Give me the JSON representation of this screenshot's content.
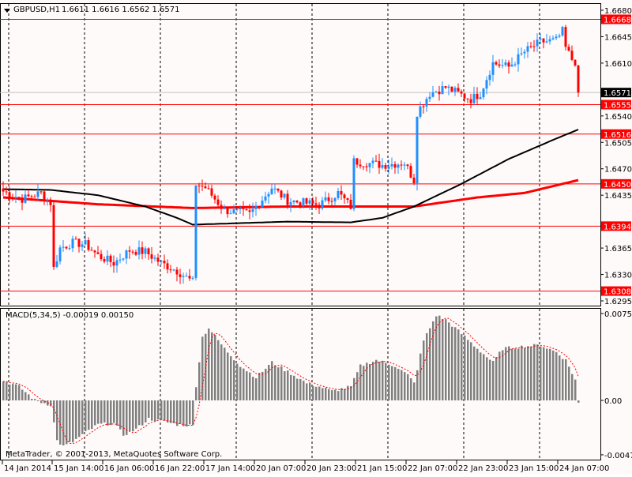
{
  "header": {
    "symbol": "GBPUSD,H1",
    "ohlc": "1.6611 1.6616 1.6562 1.6571"
  },
  "indicator": {
    "label": "MACD(5,34,5) -0.00019 0.00150"
  },
  "copyright": "MetaTrader, © 2001-2013, MetaQuotes Software Corp.",
  "colors": {
    "bull": "#1e90ff",
    "bear": "#ff0000",
    "background": "#fffafa",
    "ma_slow": "#ff0000",
    "ma_fast": "#000000",
    "histogram": "#808080",
    "signal": "#ff0000"
  },
  "chart_data": {
    "type": "candlestick",
    "title": "GBPUSD,H1",
    "bars": 183,
    "ylim": [
      1.6295,
      1.668
    ],
    "price_ticks": [
      "1.6680",
      "1.6645",
      "1.6610",
      "1.6540",
      "1.6505",
      "1.6470",
      "1.6435",
      "1.6365",
      "1.6330",
      "1.6295"
    ],
    "current_price": "1.6571",
    "levels": [
      "1.6668",
      "1.6555",
      "1.6516",
      "1.6450",
      "1.6394",
      "1.6308"
    ],
    "close_keypoints": [
      [
        0,
        1.644
      ],
      [
        6,
        1.643
      ],
      [
        12,
        1.6438
      ],
      [
        15,
        1.6425
      ],
      [
        16,
        1.6338
      ],
      [
        18,
        1.6365
      ],
      [
        22,
        1.6372
      ],
      [
        26,
        1.637
      ],
      [
        30,
        1.6355
      ],
      [
        35,
        1.6345
      ],
      [
        40,
        1.6362
      ],
      [
        45,
        1.636
      ],
      [
        50,
        1.6345
      ],
      [
        55,
        1.6335
      ],
      [
        60,
        1.632
      ],
      [
        61,
        1.645
      ],
      [
        64,
        1.6445
      ],
      [
        67,
        1.643
      ],
      [
        70,
        1.6415
      ],
      [
        78,
        1.641
      ],
      [
        85,
        1.6445
      ],
      [
        90,
        1.6428
      ],
      [
        100,
        1.6422
      ],
      [
        106,
        1.6438
      ],
      [
        110,
        1.642
      ],
      [
        111,
        1.648
      ],
      [
        120,
        1.6475
      ],
      [
        127,
        1.6478
      ],
      [
        130,
        1.6455
      ],
      [
        131,
        1.6545
      ],
      [
        135,
        1.657
      ],
      [
        140,
        1.6578
      ],
      [
        148,
        1.6562
      ],
      [
        151,
        1.657
      ],
      [
        155,
        1.661
      ],
      [
        160,
        1.6605
      ],
      [
        165,
        1.6625
      ],
      [
        170,
        1.6638
      ],
      [
        175,
        1.664
      ],
      [
        177,
        1.6652
      ],
      [
        178,
        1.663
      ],
      [
        180,
        1.6615
      ],
      [
        181,
        1.6612
      ],
      [
        182,
        1.6571
      ]
    ],
    "ma_fast_keypoints": [
      [
        0,
        1.6443
      ],
      [
        15,
        1.6442
      ],
      [
        30,
        1.6435
      ],
      [
        45,
        1.642
      ],
      [
        55,
        1.6405
      ],
      [
        60,
        1.6396
      ],
      [
        75,
        1.6398
      ],
      [
        90,
        1.64
      ],
      [
        110,
        1.6399
      ],
      [
        120,
        1.6405
      ],
      [
        130,
        1.642
      ],
      [
        145,
        1.645
      ],
      [
        160,
        1.6483
      ],
      [
        175,
        1.651
      ],
      [
        182,
        1.6522
      ]
    ],
    "ma_slow_keypoints": [
      [
        0,
        1.6432
      ],
      [
        30,
        1.6423
      ],
      [
        60,
        1.6418
      ],
      [
        90,
        1.642
      ],
      [
        130,
        1.642
      ],
      [
        150,
        1.6432
      ],
      [
        165,
        1.6438
      ],
      [
        182,
        1.6455
      ]
    ],
    "macd": {
      "ylim": [
        -0.00473,
        0.00755
      ],
      "ticks": [
        "0.00755",
        "0.00",
        "-0.00473"
      ],
      "histogram_keypoints": [
        [
          0,
          0.0017
        ],
        [
          5,
          0.0012
        ],
        [
          10,
          0.0
        ],
        [
          15,
          -0.0004
        ],
        [
          17,
          -0.0035
        ],
        [
          19,
          -0.004
        ],
        [
          22,
          -0.0036
        ],
        [
          26,
          -0.0028
        ],
        [
          30,
          -0.0021
        ],
        [
          35,
          -0.002
        ],
        [
          38,
          -0.003
        ],
        [
          42,
          -0.0025
        ],
        [
          46,
          -0.0016
        ],
        [
          50,
          -0.0018
        ],
        [
          55,
          -0.0021
        ],
        [
          60,
          -0.0022
        ],
        [
          61,
          0.0013
        ],
        [
          63,
          0.0055
        ],
        [
          65,
          0.0063
        ],
        [
          70,
          0.0045
        ],
        [
          75,
          0.003
        ],
        [
          80,
          0.002
        ],
        [
          85,
          0.0033
        ],
        [
          90,
          0.0025
        ],
        [
          96,
          0.0015
        ],
        [
          100,
          0.0012
        ],
        [
          104,
          0.0008
        ],
        [
          110,
          0.0012
        ],
        [
          113,
          0.003
        ],
        [
          118,
          0.0035
        ],
        [
          124,
          0.003
        ],
        [
          128,
          0.0022
        ],
        [
          130,
          0.0015
        ],
        [
          133,
          0.0052
        ],
        [
          137,
          0.0074
        ],
        [
          140,
          0.007
        ],
        [
          145,
          0.0058
        ],
        [
          150,
          0.0045
        ],
        [
          155,
          0.0033
        ],
        [
          158,
          0.0045
        ],
        [
          165,
          0.0047
        ],
        [
          170,
          0.0048
        ],
        [
          175,
          0.0042
        ],
        [
          178,
          0.0035
        ],
        [
          181,
          0.0018
        ],
        [
          182,
          -0.0002
        ]
      ]
    },
    "time_labels": [
      "14 Jan 2014",
      "15 Jan 14:00",
      "16 Jan 06:00",
      "16 Jan 22:00",
      "17 Jan 14:00",
      "20 Jan 07:00",
      "20 Jan 23:00",
      "21 Jan 15:00",
      "22 Jan 07:00",
      "22 Jan 23:00",
      "23 Jan 15:00",
      "24 Jan 07:00"
    ]
  }
}
